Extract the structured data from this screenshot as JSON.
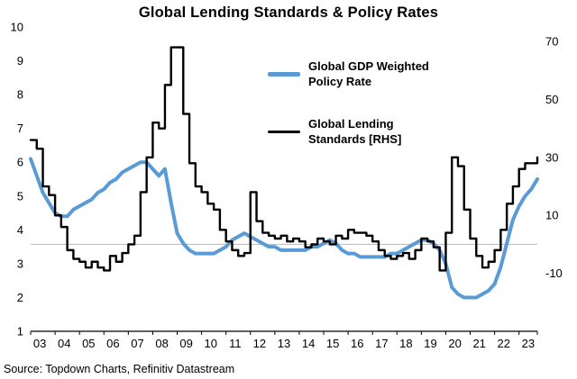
{
  "title": "Global Lending Standards & Policy Rates",
  "source": "Source: Topdown Charts, Refinitiv Datastream",
  "chart_data": {
    "type": "line",
    "title": "Global Lending Standards & Policy Rates",
    "frequency": "quarterly",
    "x_start_year": 2003,
    "x_tick_labels": [
      "03",
      "04",
      "05",
      "06",
      "07",
      "08",
      "09",
      "10",
      "11",
      "12",
      "13",
      "14",
      "15",
      "16",
      "17",
      "18",
      "19",
      "20",
      "21",
      "22",
      "23"
    ],
    "left_axis": {
      "min": 1,
      "max": 10,
      "ticks": [
        1,
        2,
        3,
        4,
        5,
        6,
        7,
        8,
        9,
        10
      ]
    },
    "right_axis": {
      "min": -30,
      "max": 75,
      "ticks": [
        -10,
        10,
        30,
        50,
        70
      ]
    },
    "gridline_rhs_value": 0,
    "gridline_color": "#b8b8b8",
    "legend_position": "inside-top-center",
    "series": [
      {
        "name": "Global GDP Weighted Policy Rate",
        "axis": "left",
        "color": "#5B9BD5",
        "width": 4,
        "style": "smooth",
        "values": [
          6.1,
          5.6,
          5.1,
          4.8,
          4.5,
          4.4,
          4.4,
          4.6,
          4.7,
          4.8,
          4.9,
          5.1,
          5.2,
          5.4,
          5.5,
          5.7,
          5.8,
          5.9,
          6.0,
          6.0,
          5.8,
          5.6,
          5.8,
          4.8,
          3.9,
          3.6,
          3.4,
          3.3,
          3.3,
          3.3,
          3.3,
          3.4,
          3.5,
          3.7,
          3.8,
          3.9,
          3.8,
          3.7,
          3.6,
          3.5,
          3.5,
          3.4,
          3.4,
          3.4,
          3.4,
          3.4,
          3.5,
          3.5,
          3.6,
          3.7,
          3.6,
          3.4,
          3.3,
          3.3,
          3.2,
          3.2,
          3.2,
          3.2,
          3.2,
          3.3,
          3.3,
          3.4,
          3.5,
          3.6,
          3.7,
          3.7,
          3.6,
          3.4,
          3.0,
          2.3,
          2.1,
          2.0,
          2.0,
          2.0,
          2.1,
          2.2,
          2.4,
          2.9,
          3.6,
          4.3,
          4.7,
          5.0,
          5.2,
          5.5
        ]
      },
      {
        "name": "Global Lending Standards [RHS]",
        "axis": "right",
        "color": "#000000",
        "width": 2.4,
        "style": "step",
        "values": [
          36,
          33,
          20,
          17,
          10,
          6,
          -2,
          -5,
          -6,
          -8,
          -6,
          -8,
          -9,
          -4,
          -6,
          -3,
          0,
          3,
          18,
          30,
          42,
          40,
          55,
          68,
          68,
          45,
          28,
          20,
          18,
          14,
          12,
          5,
          1,
          -2,
          -4,
          -3,
          18,
          8,
          4,
          3,
          2,
          3,
          1,
          2,
          1,
          -1,
          0,
          2,
          1,
          0,
          3,
          2,
          5,
          4,
          4,
          3,
          1,
          -2,
          -4,
          -5,
          -4,
          -3,
          -5,
          -2,
          2,
          1,
          -1,
          -9,
          4,
          30,
          27,
          12,
          2,
          -4,
          -8,
          -6,
          -2,
          5,
          14,
          20,
          26,
          28,
          28,
          30
        ]
      }
    ]
  }
}
